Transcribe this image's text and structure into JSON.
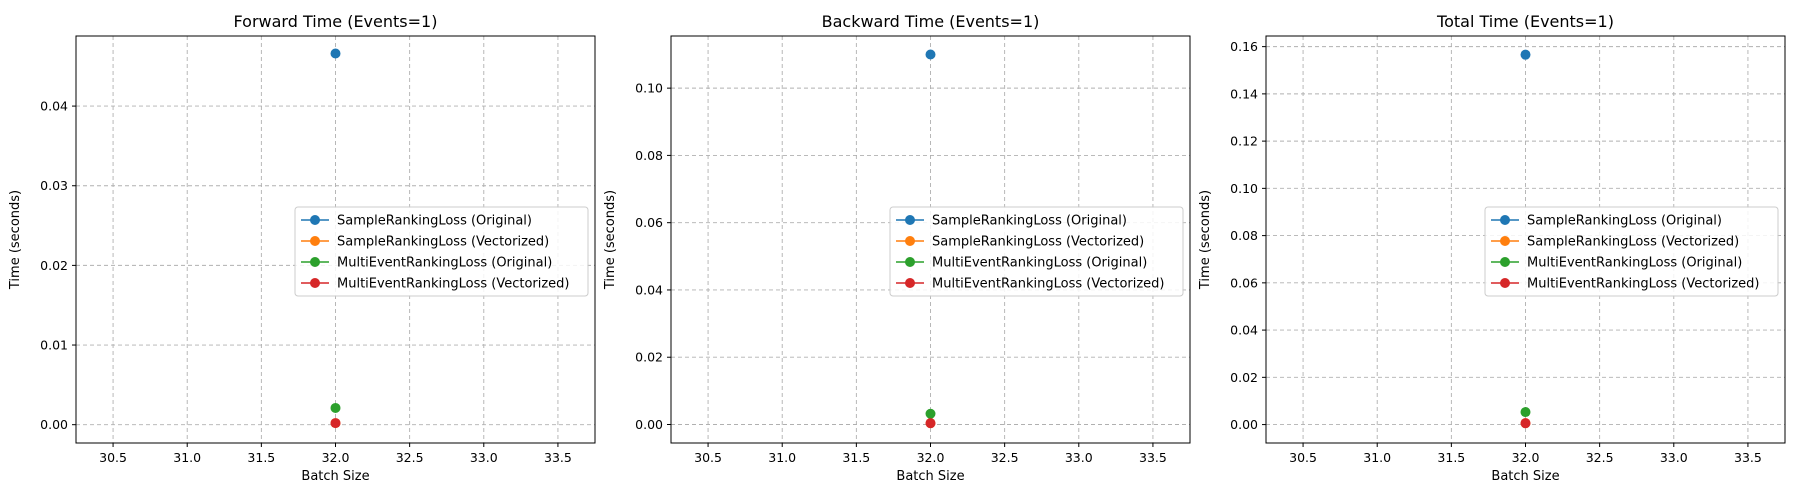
{
  "chart_data": [
    {
      "type": "line",
      "title": "Forward Time (Events=1)",
      "xlabel": "Batch Size",
      "ylabel": "Time (seconds)",
      "xlim": [
        30.25,
        33.75
      ],
      "ylim": [
        -0.0023,
        0.0488
      ],
      "xticks": [
        30.5,
        31.0,
        31.5,
        32.0,
        32.5,
        33.0,
        33.5
      ],
      "yticks": [
        0.0,
        0.01,
        0.02,
        0.03,
        0.04
      ],
      "ytick_decimals": 2,
      "grid": true,
      "legend_position": "center-right",
      "series": [
        {
          "name": "SampleRankingLoss (Original)",
          "color": "#1f77b4",
          "x": [
            32
          ],
          "y": [
            0.0466
          ]
        },
        {
          "name": "SampleRankingLoss (Vectorized)",
          "color": "#ff7f0e",
          "x": [
            32
          ],
          "y": [
            0.0002
          ]
        },
        {
          "name": "MultiEventRankingLoss (Original)",
          "color": "#2ca02c",
          "x": [
            32
          ],
          "y": [
            0.0021
          ]
        },
        {
          "name": "MultiEventRankingLoss (Vectorized)",
          "color": "#d62728",
          "x": [
            32
          ],
          "y": [
            0.0002
          ]
        }
      ]
    },
    {
      "type": "line",
      "title": "Backward Time (Events=1)",
      "xlabel": "Batch Size",
      "ylabel": "Time (seconds)",
      "xlim": [
        30.25,
        33.75
      ],
      "ylim": [
        -0.0055,
        0.1155
      ],
      "xticks": [
        30.5,
        31.0,
        31.5,
        32.0,
        32.5,
        33.0,
        33.5
      ],
      "yticks": [
        0.0,
        0.02,
        0.04,
        0.06,
        0.08,
        0.1
      ],
      "ytick_decimals": 2,
      "grid": true,
      "legend_position": "center-right",
      "series": [
        {
          "name": "SampleRankingLoss (Original)",
          "color": "#1f77b4",
          "x": [
            32
          ],
          "y": [
            0.11
          ]
        },
        {
          "name": "SampleRankingLoss (Vectorized)",
          "color": "#ff7f0e",
          "x": [
            32
          ],
          "y": [
            0.0004
          ]
        },
        {
          "name": "MultiEventRankingLoss (Original)",
          "color": "#2ca02c",
          "x": [
            32
          ],
          "y": [
            0.0032
          ]
        },
        {
          "name": "MultiEventRankingLoss (Vectorized)",
          "color": "#d62728",
          "x": [
            32
          ],
          "y": [
            0.0004
          ]
        }
      ]
    },
    {
      "type": "line",
      "title": "Total Time (Events=1)",
      "xlabel": "Batch Size",
      "ylabel": "Time (seconds)",
      "xlim": [
        30.25,
        33.75
      ],
      "ylim": [
        -0.0078,
        0.1645
      ],
      "xticks": [
        30.5,
        31.0,
        31.5,
        32.0,
        32.5,
        33.0,
        33.5
      ],
      "yticks": [
        0.0,
        0.02,
        0.04,
        0.06,
        0.08,
        0.1,
        0.12,
        0.14,
        0.16
      ],
      "ytick_decimals": 2,
      "grid": true,
      "legend_position": "center-right",
      "series": [
        {
          "name": "SampleRankingLoss (Original)",
          "color": "#1f77b4",
          "x": [
            32
          ],
          "y": [
            0.1566
          ]
        },
        {
          "name": "SampleRankingLoss (Vectorized)",
          "color": "#ff7f0e",
          "x": [
            32
          ],
          "y": [
            0.0006
          ]
        },
        {
          "name": "MultiEventRankingLoss (Original)",
          "color": "#2ca02c",
          "x": [
            32
          ],
          "y": [
            0.0053
          ]
        },
        {
          "name": "MultiEventRankingLoss (Vectorized)",
          "color": "#d62728",
          "x": [
            32
          ],
          "y": [
            0.0006
          ]
        }
      ]
    }
  ]
}
